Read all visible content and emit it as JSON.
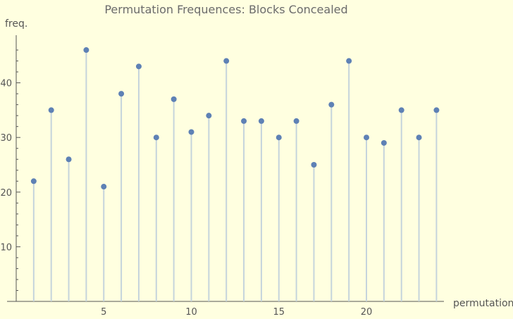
{
  "chart_data": {
    "type": "stem",
    "title": "Permutation Frequences: Blocks Concealed",
    "xlabel": "permutation",
    "ylabel": "freq.",
    "x": [
      1,
      2,
      3,
      4,
      5,
      6,
      7,
      8,
      9,
      10,
      11,
      12,
      13,
      14,
      15,
      16,
      17,
      18,
      19,
      20,
      21,
      22,
      23,
      24
    ],
    "values": [
      22,
      35,
      26,
      46,
      21,
      38,
      43,
      30,
      37,
      31,
      34,
      44,
      33,
      33,
      30,
      33,
      25,
      36,
      44,
      30,
      29,
      35,
      30,
      35
    ],
    "xlim": [
      0,
      24.5
    ],
    "ylim": [
      0,
      48
    ],
    "x_ticks": [
      5,
      10,
      15,
      20
    ],
    "y_ticks": [
      10,
      20,
      30,
      40
    ],
    "grid": false,
    "colors": {
      "background": "#ffffe0",
      "points": "#5e81b5",
      "stems": "#c5d4dc",
      "axes": "#555555",
      "title": "#6b6b6b"
    }
  }
}
